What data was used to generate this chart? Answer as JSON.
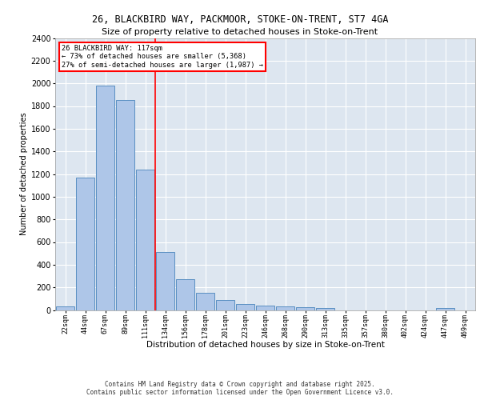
{
  "title_line1": "26, BLACKBIRD WAY, PACKMOOR, STOKE-ON-TRENT, ST7 4GA",
  "title_line2": "Size of property relative to detached houses in Stoke-on-Trent",
  "xlabel": "Distribution of detached houses by size in Stoke-on-Trent",
  "ylabel": "Number of detached properties",
  "categories": [
    "22sqm",
    "44sqm",
    "67sqm",
    "89sqm",
    "111sqm",
    "134sqm",
    "156sqm",
    "178sqm",
    "201sqm",
    "223sqm",
    "246sqm",
    "268sqm",
    "290sqm",
    "313sqm",
    "335sqm",
    "357sqm",
    "380sqm",
    "402sqm",
    "424sqm",
    "447sqm",
    "469sqm"
  ],
  "values": [
    30,
    1170,
    1980,
    1855,
    1240,
    515,
    275,
    155,
    90,
    50,
    42,
    35,
    25,
    20,
    0,
    0,
    0,
    0,
    0,
    18,
    0
  ],
  "bar_color": "#aec6e8",
  "bar_edge_color": "#5a8fc2",
  "bg_color": "#dde6f0",
  "grid_color": "#ffffff",
  "red_line_x": 4.5,
  "annotation_line1": "26 BLACKBIRD WAY: 117sqm",
  "annotation_line2": "← 73% of detached houses are smaller (5,368)",
  "annotation_line3": "27% of semi-detached houses are larger (1,987) →",
  "ylim_max": 2400,
  "yticks": [
    0,
    200,
    400,
    600,
    800,
    1000,
    1200,
    1400,
    1600,
    1800,
    2000,
    2200,
    2400
  ],
  "footer_line1": "Contains HM Land Registry data © Crown copyright and database right 2025.",
  "footer_line2": "Contains public sector information licensed under the Open Government Licence v3.0."
}
